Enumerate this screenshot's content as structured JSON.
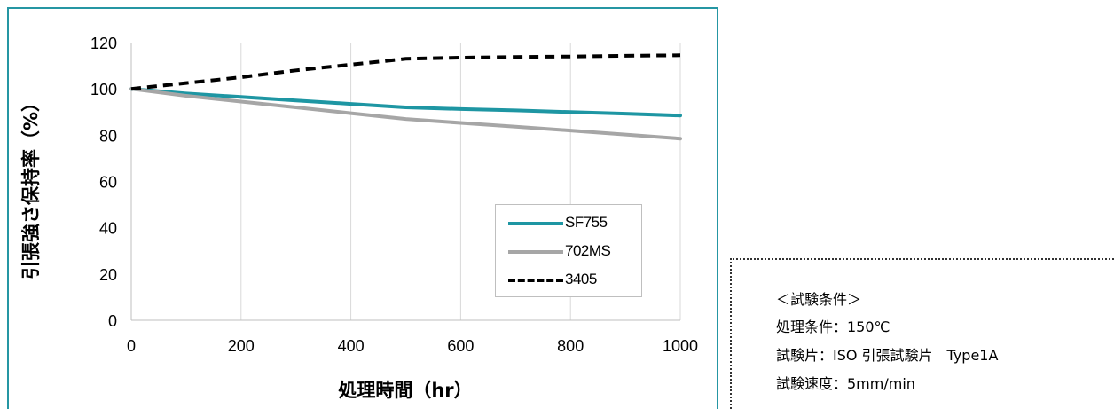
{
  "chart_data": {
    "type": "line",
    "xlabel": "処理時間（hr）",
    "ylabel": "引張強さ保持率（%）",
    "xlim": [
      0,
      1000
    ],
    "ylim": [
      0,
      120
    ],
    "xticks": [
      0,
      200,
      400,
      600,
      800,
      1000
    ],
    "yticks": [
      0,
      20,
      40,
      60,
      80,
      100,
      120
    ],
    "grid": "vertical",
    "legend_position": "lower-right",
    "x": [
      0,
      100,
      200,
      300,
      400,
      500,
      600,
      700,
      800,
      900,
      1000
    ],
    "series": [
      {
        "name": "SF755",
        "color": "#1e96a3",
        "style": "solid",
        "values": [
          100,
          98,
          96.5,
          95,
          93.5,
          92,
          91.3,
          90.7,
          90,
          89.3,
          88.5
        ]
      },
      {
        "name": "702MS",
        "color": "#a6a6a6",
        "style": "solid",
        "values": [
          100,
          97,
          94.5,
          92,
          89.5,
          87,
          85.3,
          83.7,
          82,
          80.3,
          78.5
        ]
      },
      {
        "name": "3405",
        "color": "#000000",
        "style": "dashed",
        "values": [
          100,
          102.5,
          105,
          108,
          110.5,
          113,
          113.5,
          113.8,
          114,
          114.3,
          114.5
        ]
      }
    ]
  },
  "conditions": {
    "title": "＜試験条件＞",
    "lines": [
      "処理条件：150℃",
      "試験片：ISO 引張試験片　Type1A",
      "試験速度：5mm/min"
    ]
  }
}
